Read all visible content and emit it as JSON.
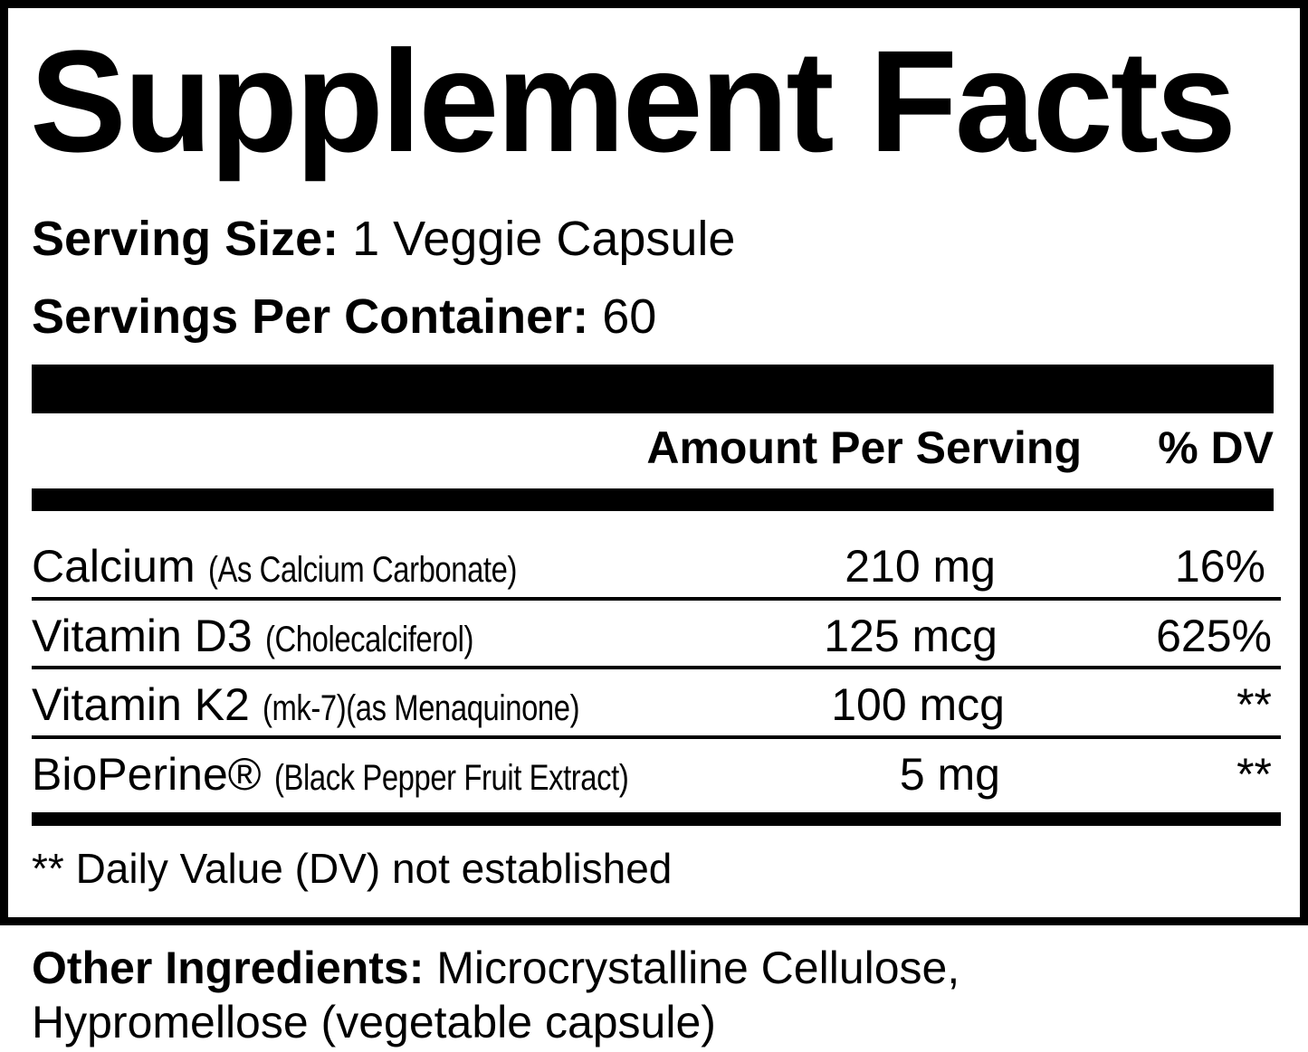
{
  "title": "Supplement Facts",
  "serving": {
    "size_label": "Serving Size:",
    "size_value": "1 Veggie Capsule",
    "per_container_label": "Servings Per Container:",
    "per_container_value": "60"
  },
  "header": {
    "amount": "Amount Per Serving",
    "dv": "% DV"
  },
  "rows": [
    {
      "name": "Calcium",
      "detail": "(As Calcium Carbonate)",
      "amount": "210 mg",
      "dv": "16%"
    },
    {
      "name": "Vitamin D3",
      "detail": "(Cholecalciferol)",
      "amount": "125 mcg",
      "dv": "625%"
    },
    {
      "name": "Vitamin K2",
      "detail": "(mk-7)(as Menaquinone)",
      "amount": "100 mcg",
      "dv": "**"
    },
    {
      "name": "BioPerine®",
      "detail": "(Black Pepper Fruit Extract)",
      "amount": "5 mg",
      "dv": "**"
    }
  ],
  "footnote": "** Daily Value (DV) not established",
  "other": {
    "label": "Other Ingredients:",
    "line1": "Microcrystalline Cellulose,",
    "line2": "Hypromellose (vegetable capsule)"
  }
}
